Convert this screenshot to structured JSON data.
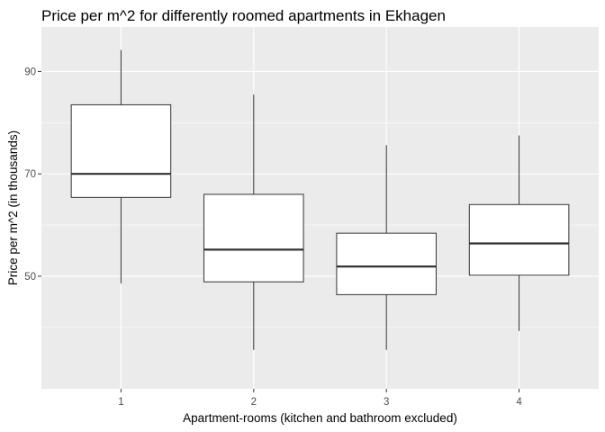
{
  "chart_data": {
    "type": "boxplot",
    "title": "Price per m^2 for differently roomed apartments in Ekhagen",
    "xlabel": "Apartment-rooms (kitchen and bathroom excluded)",
    "ylabel": "Price per m^2 (in thousands)",
    "categories": [
      "1",
      "2",
      "3",
      "4"
    ],
    "ylim": [
      28,
      98.7
    ],
    "y_ticks": [
      50,
      70,
      90
    ],
    "y_tick_labels": [
      "50",
      "70",
      "90"
    ],
    "grid": true,
    "boxes": [
      {
        "category": "1",
        "whisker_low": 48.6,
        "q1": 65.4,
        "median": 70.0,
        "q3": 83.5,
        "whisker_high": 94.2
      },
      {
        "category": "2",
        "whisker_low": 35.6,
        "q1": 48.9,
        "median": 55.2,
        "q3": 66.0,
        "whisker_high": 85.5
      },
      {
        "category": "3",
        "whisker_low": 35.6,
        "q1": 46.4,
        "median": 51.9,
        "q3": 58.4,
        "whisker_high": 75.6
      },
      {
        "category": "4",
        "whisker_low": 39.3,
        "q1": 50.2,
        "median": 56.4,
        "q3": 64.0,
        "whisker_high": 77.5
      }
    ],
    "colors": {
      "panel": "#ebebeb",
      "grid": "#ffffff",
      "box_fill": "#ffffff",
      "box_line": "#333333"
    }
  }
}
